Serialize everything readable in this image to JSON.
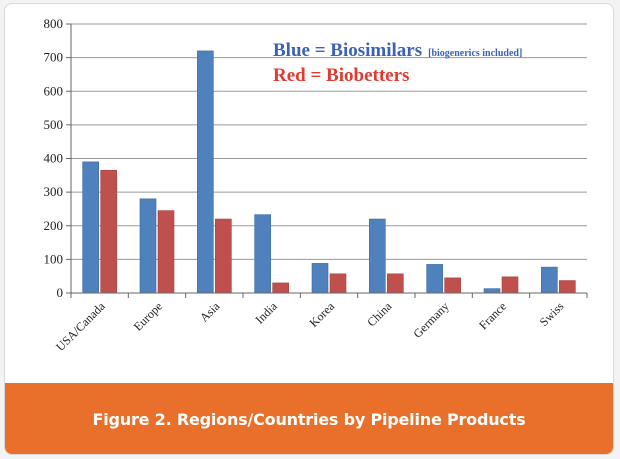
{
  "figure": {
    "caption": "Figure 2. Regions/Countries by Pipeline Products"
  },
  "legend": {
    "blue_label": "Blue = Biosimilars",
    "blue_note": "[biogenerics included]",
    "red_label": "Red = Biobetters"
  },
  "colors": {
    "biosimilars": "#4f81bd",
    "biobetters": "#c0504d",
    "caption_bar": "#e8702a"
  },
  "chart_data": {
    "type": "bar",
    "categories": [
      "USA/Canada",
      "Europe",
      "Asia",
      "India",
      "Korea",
      "China",
      "Germany",
      "France",
      "Swiss"
    ],
    "series": [
      {
        "name": "Biosimilars",
        "values": [
          390,
          280,
          720,
          233,
          88,
          220,
          85,
          13,
          77
        ]
      },
      {
        "name": "Biobetters",
        "values": [
          365,
          245,
          220,
          30,
          57,
          57,
          45,
          48,
          37
        ]
      }
    ],
    "title": "",
    "xlabel": "",
    "ylabel": "",
    "ylim": [
      0,
      800
    ],
    "yticks": [
      0,
      100,
      200,
      300,
      400,
      500,
      600,
      700,
      800
    ],
    "grid": true,
    "legend_placement": "top-right"
  }
}
